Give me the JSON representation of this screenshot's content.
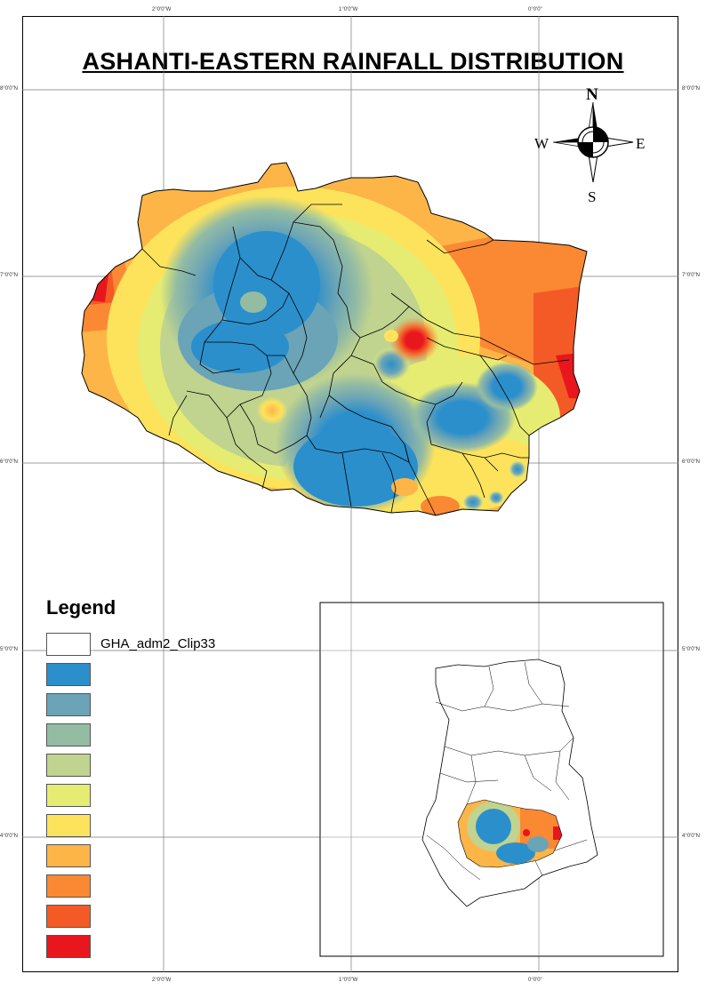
{
  "map": {
    "title": "ASHANTI-EASTERN RAINFALL DISTRIBUTION",
    "graticule": {
      "top_labels": [
        "2°0'0\"W",
        "1°0'0\"W",
        "0°0'0\""
      ],
      "bottom_labels": [
        "2°0'0\"W",
        "1°0'0\"W",
        "0°0'0\""
      ],
      "left_labels": [
        "8°0'0\"N",
        "7°0'0\"N",
        "6°0'0\"N",
        "5°0'0\"N",
        "4°0'0\"N"
      ],
      "right_labels": [
        "8°0'0\"N",
        "7°0'0\"N",
        "6°0'0\"N",
        "5°0'0\"N",
        "4°0'0\"N"
      ]
    },
    "compass": {
      "north": "N",
      "south": "S",
      "east": "E",
      "west": "W"
    }
  },
  "legend": {
    "title": "Legend",
    "boundary_label": "GHA_adm2_Clip33",
    "class_colors": [
      "#2b8fcc",
      "#6aa4b6",
      "#94bca3",
      "#c0d38f",
      "#e6ec72",
      "#fde35c",
      "#fdb547",
      "#fb8833",
      "#f45a25",
      "#e8171d"
    ]
  },
  "colors": {
    "low_rainfall": "#2b8fcc",
    "high_rainfall": "#e8171d"
  }
}
